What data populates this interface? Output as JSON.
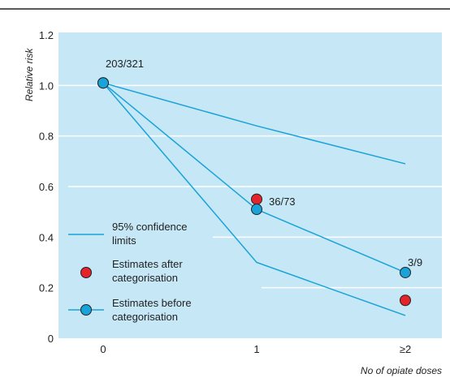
{
  "chart_data": {
    "type": "line",
    "ylabel": "Relative risk",
    "xlabel": "No of opiate doses",
    "categories": [
      "0",
      "1",
      "≥2"
    ],
    "ylim": [
      0,
      1.2
    ],
    "yticks": [
      "0",
      "0.2",
      "0.4",
      "0.6",
      "0.8",
      "1.0",
      "1.2"
    ],
    "grid": "horizontal",
    "background_color": "#c6e7f5",
    "line_color": "#1aa3d9",
    "series": [
      {
        "name": "95% confidence limits",
        "role": "upper",
        "values": [
          1.01,
          0.84,
          0.69
        ]
      },
      {
        "name": "95% confidence limits",
        "role": "lower",
        "values": [
          1.01,
          0.3,
          0.09
        ]
      },
      {
        "name": "Estimates before categorisation",
        "role": "estimate-line",
        "values": [
          1.01,
          0.51,
          0.26
        ]
      },
      {
        "name": "Estimates after categorisation",
        "marker": "red-circle",
        "color": "#e4232b",
        "values": [
          1.01,
          0.55,
          0.15
        ]
      },
      {
        "name": "Estimates before categorisation",
        "marker": "blue-circle",
        "color": "#1aa3d9",
        "values": [
          1.01,
          0.51,
          0.26
        ]
      }
    ],
    "annotations": [
      {
        "text": "203/321",
        "x": "0",
        "y": 1.01
      },
      {
        "text": "36/73",
        "x": "1",
        "y": 0.53
      },
      {
        "text": "3/9",
        "x": "≥2",
        "y": 0.26
      }
    ],
    "legend": {
      "placement": "bottom-left",
      "entries": [
        {
          "label_line1": "95% confidence",
          "label_line2": "limits",
          "symbol": "line"
        },
        {
          "label_line1": "Estimates after",
          "label_line2": "categorisation",
          "symbol": "red-circle"
        },
        {
          "label_line1": "Estimates before",
          "label_line2": "categorisation",
          "symbol": "blue-line-circle"
        }
      ]
    }
  }
}
